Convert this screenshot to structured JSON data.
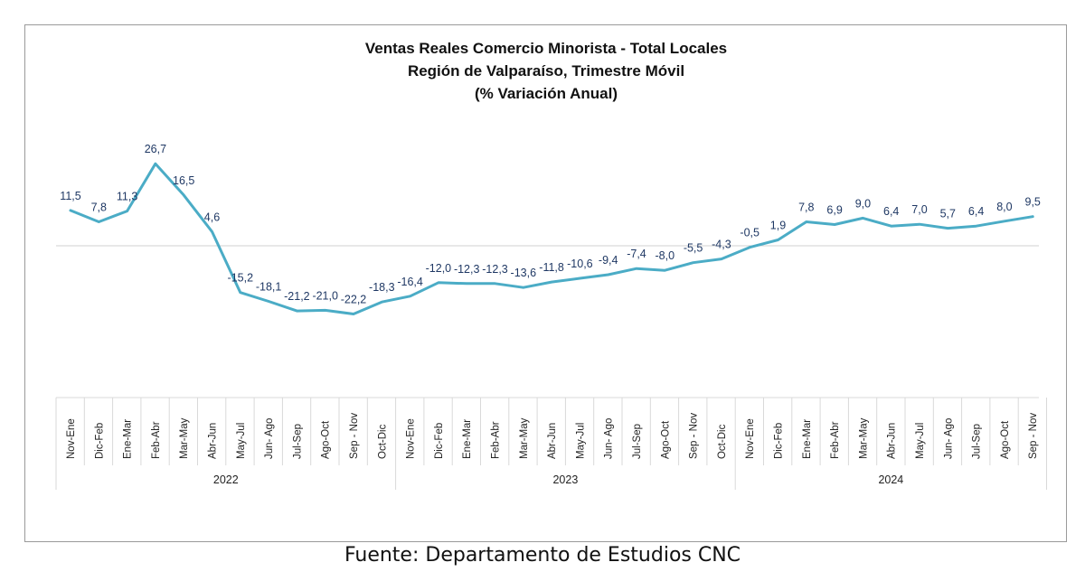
{
  "chart_data": {
    "type": "line",
    "title": [
      "Ventas Reales Comercio Minorista - Total Locales",
      "Región de Valparaíso, Trimestre Móvil",
      "(% Variación Anual)"
    ],
    "categories": [
      "Nov-Ene",
      "Dic-Feb",
      "Ene-Mar",
      "Feb-Abr",
      "Mar-May",
      "Abr-Jun",
      "May-Jul",
      "Jun- Ago",
      "Jul-Sep",
      "Ago-Oct",
      "Sep - Nov",
      "Oct-Dic",
      "Nov-Ene",
      "Dic-Feb",
      "Ene-Mar",
      "Feb-Abr",
      "Mar-May",
      "Abr-Jun",
      "May-Jul",
      "Jun- Ago",
      "Jul-Sep",
      "Ago-Oct",
      "Sep - Nov",
      "Oct-Dic",
      "Nov-Ene",
      "Dic-Feb",
      "Ene-Mar",
      "Feb-Abr",
      "Mar-May",
      "Abr-Jun",
      "May-Jul",
      "Jun- Ago",
      "Jul-Sep",
      "Ago-Oct",
      "Sep - Nov"
    ],
    "values": [
      11.5,
      7.8,
      11.3,
      26.7,
      16.5,
      4.6,
      -15.2,
      -18.1,
      -21.2,
      -21.0,
      -22.2,
      -18.3,
      -16.4,
      -12.0,
      -12.3,
      -12.3,
      -13.6,
      -11.8,
      -10.6,
      -9.4,
      -7.4,
      -8.0,
      -5.5,
      -4.3,
      -0.5,
      1.9,
      7.8,
      6.9,
      9.0,
      6.4,
      7.0,
      5.7,
      6.4,
      8.0,
      9.5
    ],
    "value_labels": [
      "11,5",
      "7,8",
      "11,3",
      "26,7",
      "16,5",
      "4,6",
      "-15,2",
      "-18,1",
      "-21,2",
      "-21,0",
      "-22,2",
      "-18,3",
      "-16,4",
      "-12,0",
      "-12,3",
      "-12,3",
      "-13,6",
      "-11,8",
      "-10,6",
      "-9,4",
      "-7,4",
      "-8,0",
      "-5,5",
      "-4,3",
      "-0,5",
      "1,9",
      "7,8",
      "6,9",
      "9,0",
      "6,4",
      "7,0",
      "5,7",
      "6,4",
      "8,0",
      "9,5"
    ],
    "groups": [
      {
        "label": "2022",
        "count": 12
      },
      {
        "label": "2023",
        "count": 12
      },
      {
        "label": "2024",
        "count": 11
      }
    ],
    "line_color": "#4bacc6",
    "label_color": "#1f3864",
    "grid": false,
    "legend": "none"
  },
  "source_text": "Fuente: Departamento de Estudios CNC"
}
